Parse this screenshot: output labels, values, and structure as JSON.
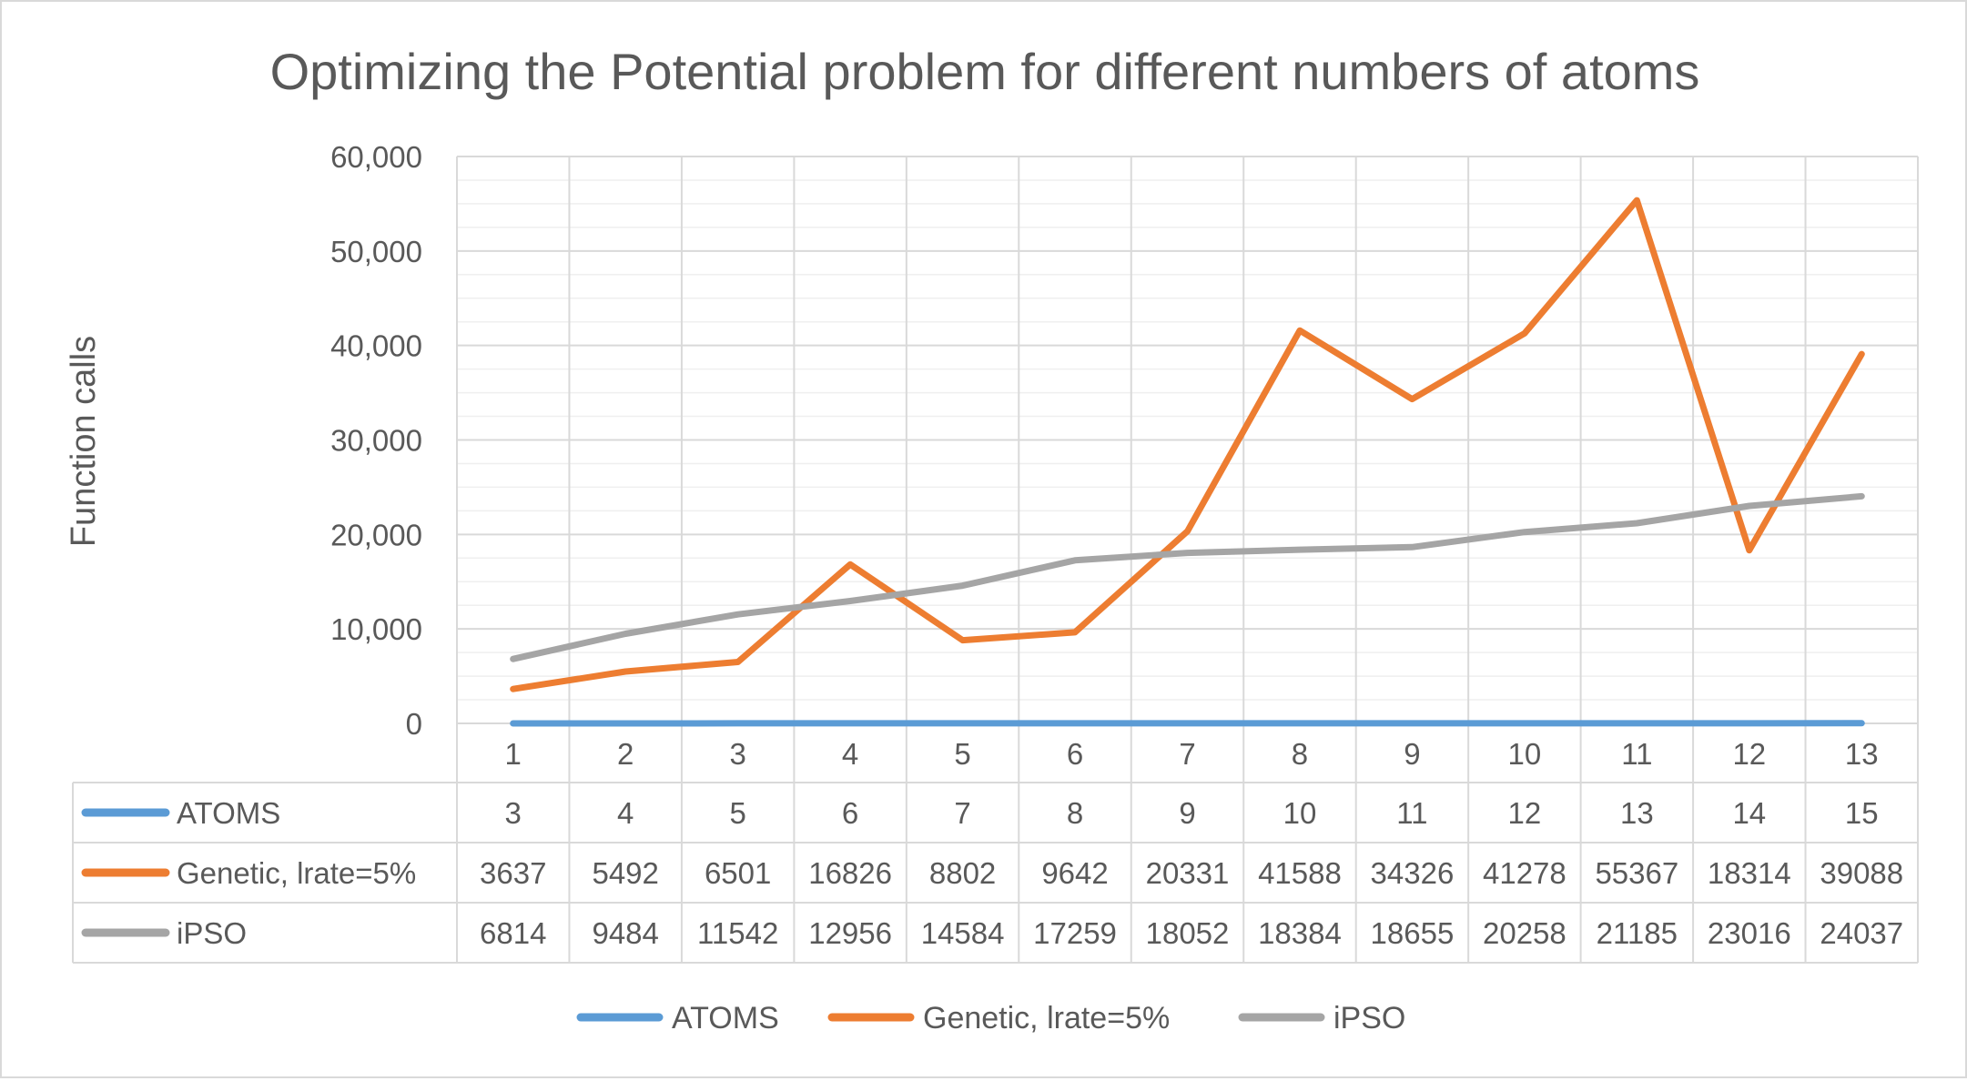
{
  "chart_data": {
    "type": "line",
    "title": "Optimizing the Potential problem for different numbers of atoms",
    "xlabel": "",
    "ylabel": "Function calls",
    "ylim": [
      0,
      60000
    ],
    "y_ticks": [
      "0",
      "10,000",
      "20,000",
      "30,000",
      "40,000",
      "50,000",
      "60,000"
    ],
    "categories": [
      "1",
      "2",
      "3",
      "4",
      "5",
      "6",
      "7",
      "8",
      "9",
      "10",
      "11",
      "12",
      "13"
    ],
    "grid": true,
    "legend_position": "bottom",
    "data_table": true,
    "series": [
      {
        "name": "ATOMS",
        "color": "#5b9bd5",
        "values": [
          3,
          4,
          5,
          6,
          7,
          8,
          9,
          10,
          11,
          12,
          13,
          14,
          15
        ]
      },
      {
        "name": "Genetic, lrate=5%",
        "color": "#ed7d31",
        "values": [
          3637,
          5492,
          6501,
          16826,
          8802,
          9642,
          20331,
          41588,
          34326,
          41278,
          55367,
          18314,
          39088
        ]
      },
      {
        "name": "iPSO",
        "color": "#a5a5a5",
        "values": [
          6814,
          9484,
          11542,
          12956,
          14584,
          17259,
          18052,
          18384,
          18655,
          20258,
          21185,
          23016,
          24037
        ]
      }
    ]
  }
}
